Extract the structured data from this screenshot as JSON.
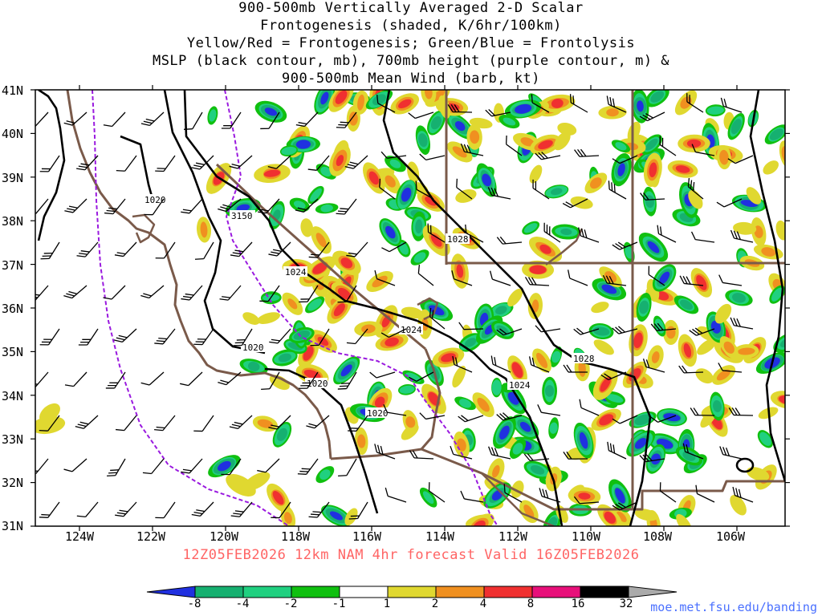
{
  "title_lines": [
    "900-500mb Vertically Averaged 2-D Scalar",
    "Frontogenesis (shaded, K/6hr/100km)",
    "Yellow/Red = Frontogenesis;  Green/Blue = Frontolysis",
    "MSLP (black contour, mb), 700mb height (purple contour, m) &",
    "900-500mb Mean Wind (barb, kt)"
  ],
  "valid_text": "12Z05FEB2026 12km NAM 4hr forecast Valid 16Z05FEB2026",
  "credit": "moe.met.fsu.edu/banding",
  "lat_labels": [
    "41N",
    "40N",
    "39N",
    "38N",
    "37N",
    "36N",
    "35N",
    "34N",
    "33N",
    "32N",
    "31N"
  ],
  "lon_labels": [
    "124W",
    "122W",
    "120W",
    "118W",
    "116W",
    "114W",
    "112W",
    "110W",
    "108W",
    "106W"
  ],
  "colorbar": {
    "labels": [
      "-8",
      "-4",
      "-2",
      "-1",
      "1",
      "2",
      "4",
      "8",
      "16",
      "32"
    ],
    "colors": [
      "#2030e0",
      "#16b070",
      "#20d080",
      "#10c010",
      "#ffffff",
      "#e0d830",
      "#f09020",
      "#f03030",
      "#e8107a",
      "#000000"
    ]
  },
  "contour_labels": [
    "1020",
    "3150",
    "1024",
    "1028",
    "1020",
    "1024",
    "1020",
    "1028",
    "1024",
    "1020"
  ],
  "map": {
    "mslp_color": "#000000",
    "height_color": "#9a1adf",
    "border_color": "#7a5a4a"
  }
}
